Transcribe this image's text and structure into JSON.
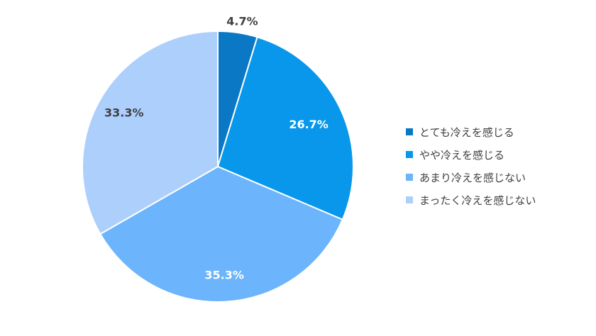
{
  "chart_data": {
    "type": "pie",
    "categories": [
      "とても冷えを感じる",
      "やや冷えを感じる",
      "あまり冷えを感じない",
      "まったく冷えを感じない"
    ],
    "values": [
      4.7,
      26.7,
      35.3,
      33.3
    ],
    "labels": [
      "4.7%",
      "26.7%",
      "35.3%",
      "33.3%"
    ],
    "colors": [
      "#0a78c4",
      "#0897ea",
      "#6cb4fb",
      "#adcffc"
    ],
    "label_colors": [
      "#404040",
      "#ffffff",
      "#ffffff",
      "#404040"
    ],
    "legend_position": "right",
    "title": ""
  }
}
